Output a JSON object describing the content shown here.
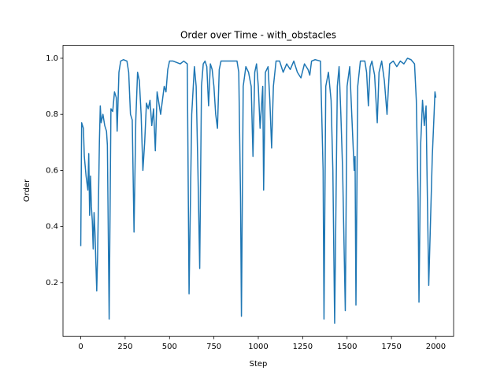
{
  "chart_data": {
    "type": "line",
    "title": "Order over Time - with_obstacles",
    "xlabel": "Step",
    "ylabel": "Order",
    "color": "#1f77b4",
    "xlim": [
      -100,
      2100
    ],
    "ylim": [
      0.008,
      1.046
    ],
    "xticks": [
      0,
      250,
      500,
      750,
      1000,
      1250,
      1500,
      1750,
      2000
    ],
    "yticks": [
      0.2,
      0.4,
      0.6,
      0.8,
      {
        "value": 1.0,
        "label": "1.0"
      }
    ],
    "x": [
      0,
      5,
      15,
      20,
      30,
      40,
      45,
      50,
      55,
      60,
      65,
      70,
      75,
      80,
      90,
      95,
      105,
      110,
      115,
      125,
      135,
      145,
      150,
      160,
      170,
      180,
      190,
      200,
      205,
      215,
      225,
      240,
      260,
      270,
      280,
      290,
      300,
      310,
      320,
      330,
      340,
      350,
      360,
      370,
      380,
      390,
      400,
      410,
      420,
      430,
      440,
      450,
      460,
      470,
      480,
      490,
      500,
      520,
      540,
      560,
      580,
      600,
      610,
      625,
      640,
      650,
      660,
      670,
      680,
      690,
      700,
      710,
      720,
      730,
      740,
      750,
      760,
      770,
      780,
      790,
      820,
      850,
      880,
      890,
      900,
      905,
      915,
      930,
      945,
      960,
      970,
      980,
      990,
      1000,
      1010,
      1025,
      1030,
      1040,
      1055,
      1065,
      1075,
      1085,
      1100,
      1120,
      1140,
      1160,
      1180,
      1200,
      1220,
      1240,
      1260,
      1280,
      1290,
      1300,
      1320,
      1350,
      1365,
      1370,
      1380,
      1395,
      1410,
      1420,
      1430,
      1445,
      1455,
      1465,
      1475,
      1490,
      1500,
      1515,
      1525,
      1540,
      1545,
      1550,
      1560,
      1575,
      1600,
      1610,
      1620,
      1630,
      1640,
      1655,
      1670,
      1680,
      1695,
      1710,
      1725,
      1740,
      1760,
      1780,
      1800,
      1820,
      1840,
      1860,
      1880,
      1890,
      1900,
      1905,
      1915,
      1925,
      1935,
      1945,
      1950,
      1960,
      1980,
      1990,
      1995,
      2000
    ],
    "values": [
      0.33,
      0.77,
      0.75,
      0.65,
      0.58,
      0.53,
      0.66,
      0.44,
      0.58,
      0.47,
      0.42,
      0.32,
      0.45,
      0.38,
      0.17,
      0.3,
      0.7,
      0.83,
      0.77,
      0.8,
      0.76,
      0.74,
      0.69,
      0.07,
      0.82,
      0.81,
      0.88,
      0.86,
      0.74,
      0.95,
      0.99,
      0.995,
      0.99,
      0.95,
      0.8,
      0.78,
      0.38,
      0.78,
      0.95,
      0.92,
      0.8,
      0.6,
      0.7,
      0.84,
      0.82,
      0.85,
      0.76,
      0.82,
      0.67,
      0.88,
      0.84,
      0.8,
      0.85,
      0.9,
      0.88,
      0.96,
      0.99,
      0.99,
      0.985,
      0.98,
      0.99,
      0.98,
      0.16,
      0.8,
      0.97,
      0.9,
      0.6,
      0.25,
      0.9,
      0.98,
      0.99,
      0.97,
      0.83,
      0.98,
      0.96,
      0.9,
      0.8,
      0.75,
      0.96,
      0.99,
      0.99,
      0.99,
      0.99,
      0.95,
      0.5,
      0.08,
      0.9,
      0.97,
      0.95,
      0.9,
      0.65,
      0.95,
      0.98,
      0.9,
      0.75,
      0.9,
      0.53,
      0.95,
      0.97,
      0.85,
      0.68,
      0.9,
      0.99,
      0.99,
      0.95,
      0.98,
      0.96,
      0.99,
      0.95,
      0.93,
      0.98,
      0.96,
      0.94,
      0.99,
      0.995,
      0.99,
      0.6,
      0.07,
      0.9,
      0.95,
      0.85,
      0.6,
      0.055,
      0.9,
      0.97,
      0.8,
      0.6,
      0.1,
      0.9,
      0.97,
      0.82,
      0.6,
      0.65,
      0.12,
      0.9,
      0.99,
      0.99,
      0.95,
      0.83,
      0.97,
      0.99,
      0.94,
      0.77,
      0.95,
      0.99,
      0.92,
      0.8,
      0.98,
      0.99,
      0.97,
      0.99,
      0.98,
      1.0,
      0.995,
      0.98,
      0.85,
      0.5,
      0.13,
      0.7,
      0.85,
      0.76,
      0.83,
      0.6,
      0.19,
      0.65,
      0.8,
      0.88,
      0.86
    ]
  }
}
